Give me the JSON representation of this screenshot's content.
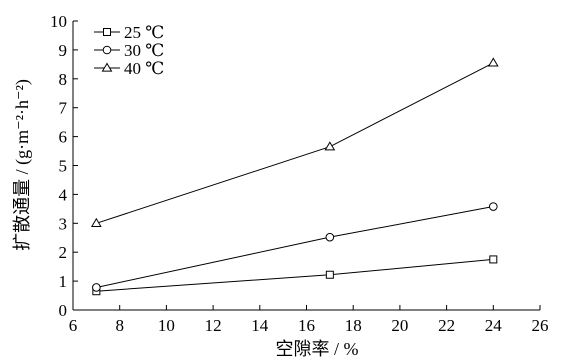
{
  "chart_data": {
    "type": "line",
    "xlabel": "空隙率 / %",
    "ylabel": "扩散通量 / (g·m⁻²·h⁻²)",
    "xlim": [
      6,
      26
    ],
    "ylim": [
      0,
      10
    ],
    "xticks": [
      6,
      8,
      10,
      12,
      14,
      16,
      18,
      20,
      22,
      24,
      26
    ],
    "yticks": [
      0,
      1,
      2,
      3,
      4,
      5,
      6,
      7,
      8,
      9,
      10
    ],
    "legend_position": "top-left",
    "grid": false,
    "x": [
      7,
      17,
      24
    ],
    "series": [
      {
        "name": "25 ℃",
        "marker": "square",
        "values": [
          0.65,
          1.22,
          1.75
        ]
      },
      {
        "name": "30 ℃",
        "marker": "circle",
        "values": [
          0.78,
          2.52,
          3.58
        ]
      },
      {
        "name": "40 ℃",
        "marker": "triangle",
        "values": [
          3.0,
          5.65,
          8.55
        ]
      }
    ]
  }
}
